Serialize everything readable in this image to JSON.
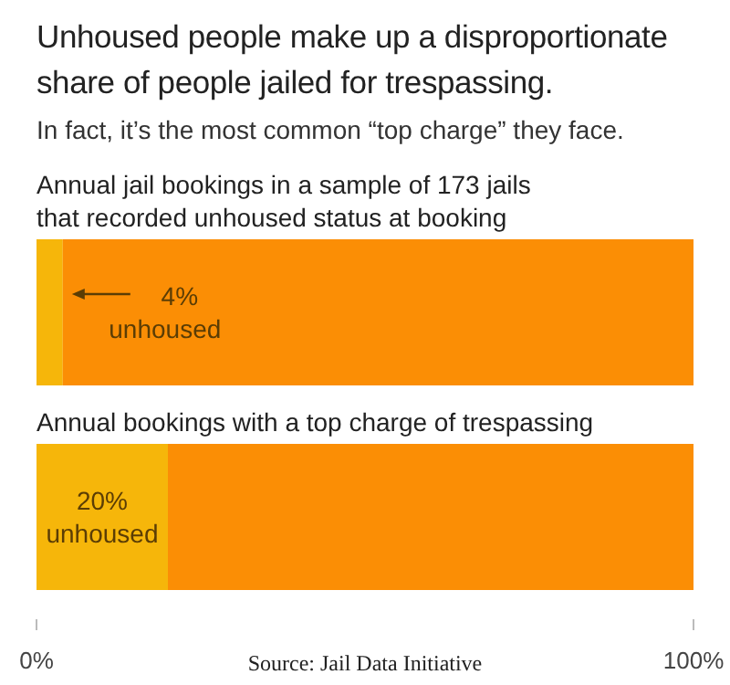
{
  "chart_data": {
    "type": "bar",
    "orientation": "horizontal",
    "stacked": true,
    "title": "Unhoused people make up a disproportionate share of people jailed for trespassing.",
    "subtitle": "In fact, it’s the most common “top charge” they face.",
    "categories": [
      "Annual jail bookings in a sample of 173 jails that recorded unhoused status at booking",
      "Annual bookings with a top charge of trespassing"
    ],
    "series": [
      {
        "color": "#f6b60a",
        "values": [
          4,
          20
        ],
        "value_labels": [
          "4% unhoused",
          "20% unhoused"
        ]
      },
      {
        "color": "#fb8e05",
        "values": [
          96,
          80
        ]
      }
    ],
    "xlim": [
      0,
      100
    ],
    "xticks": [
      {
        "value": 0,
        "label": "0%"
      },
      {
        "value": 100,
        "label": "100%"
      }
    ],
    "annotations": [
      "Source: Jail Data Initiative"
    ]
  }
}
